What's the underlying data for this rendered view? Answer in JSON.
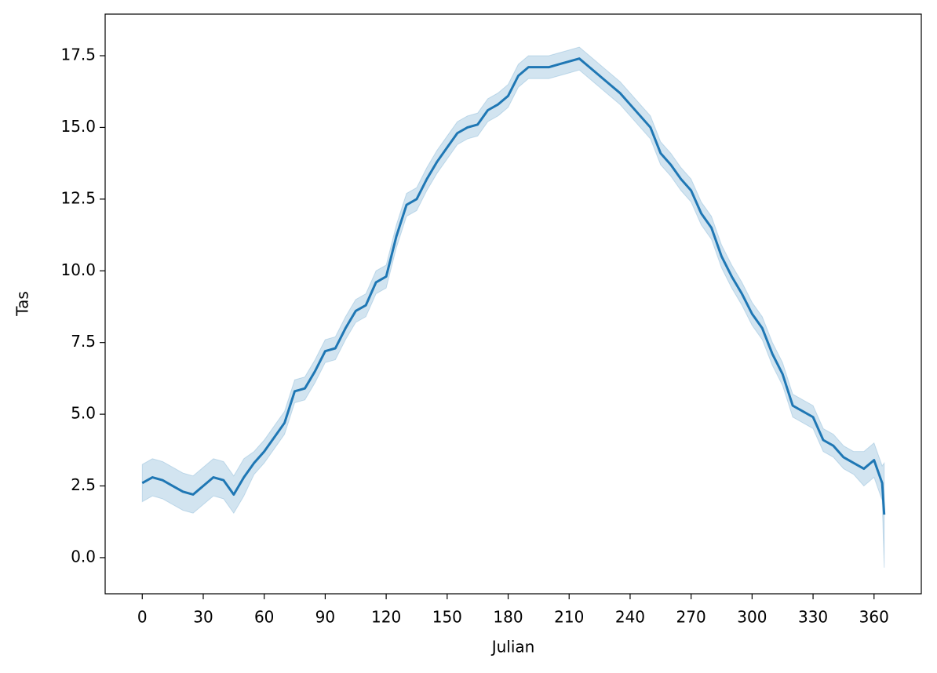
{
  "chart_data": {
    "type": "line",
    "xlabel": "Julian",
    "ylabel": "Tas",
    "x": [
      0,
      5,
      10,
      15,
      20,
      25,
      30,
      35,
      40,
      45,
      50,
      55,
      60,
      65,
      70,
      75,
      80,
      85,
      90,
      95,
      100,
      105,
      110,
      115,
      120,
      125,
      130,
      135,
      140,
      145,
      150,
      155,
      160,
      165,
      170,
      175,
      180,
      185,
      190,
      195,
      200,
      205,
      210,
      215,
      220,
      225,
      230,
      235,
      240,
      245,
      250,
      255,
      260,
      265,
      270,
      275,
      280,
      285,
      290,
      295,
      300,
      305,
      310,
      315,
      320,
      325,
      330,
      335,
      340,
      345,
      350,
      355,
      360,
      364,
      365
    ],
    "series": [
      {
        "color": "#1f77b4",
        "values": [
          2.6,
          2.8,
          2.7,
          2.5,
          2.3,
          2.2,
          2.5,
          2.8,
          2.7,
          2.2,
          2.8,
          3.3,
          3.7,
          4.2,
          4.7,
          5.8,
          5.9,
          6.5,
          7.2,
          7.3,
          8.0,
          8.6,
          8.8,
          9.6,
          9.8,
          11.2,
          12.3,
          12.5,
          13.2,
          13.8,
          14.3,
          14.8,
          15.0,
          15.1,
          15.6,
          15.8,
          16.1,
          16.8,
          17.1,
          17.1,
          17.1,
          17.2,
          17.3,
          17.4,
          17.1,
          16.8,
          16.5,
          16.2,
          15.8,
          15.4,
          15.0,
          14.1,
          13.7,
          13.2,
          12.8,
          12.0,
          11.5,
          10.5,
          9.8,
          9.2,
          8.5,
          8.0,
          7.1,
          6.4,
          5.3,
          5.1,
          4.9,
          4.1,
          3.9,
          3.5,
          3.3,
          3.1,
          3.4,
          2.6,
          1.5
        ],
        "ci_lower": [
          1.95,
          2.15,
          2.05,
          1.85,
          1.65,
          1.55,
          1.85,
          2.15,
          2.05,
          1.55,
          2.15,
          2.9,
          3.3,
          3.8,
          4.3,
          5.4,
          5.5,
          6.1,
          6.8,
          6.9,
          7.6,
          8.2,
          8.4,
          9.2,
          9.4,
          10.8,
          11.9,
          12.1,
          12.8,
          13.4,
          13.9,
          14.4,
          14.6,
          14.7,
          15.2,
          15.4,
          15.7,
          16.4,
          16.7,
          16.7,
          16.7,
          16.8,
          16.9,
          17.0,
          16.7,
          16.4,
          16.1,
          15.8,
          15.4,
          15.0,
          14.6,
          13.7,
          13.3,
          12.8,
          12.4,
          11.6,
          11.1,
          10.1,
          9.4,
          8.8,
          8.1,
          7.6,
          6.7,
          6.0,
          4.9,
          4.7,
          4.5,
          3.7,
          3.5,
          3.1,
          2.9,
          2.5,
          2.8,
          2.0,
          -0.35
        ],
        "ci_upper": [
          3.25,
          3.45,
          3.35,
          3.15,
          2.95,
          2.85,
          3.15,
          3.45,
          3.35,
          2.85,
          3.45,
          3.7,
          4.1,
          4.6,
          5.1,
          6.2,
          6.3,
          6.9,
          7.6,
          7.7,
          8.4,
          9.0,
          9.2,
          10.0,
          10.2,
          11.6,
          12.7,
          12.9,
          13.6,
          14.2,
          14.7,
          15.2,
          15.4,
          15.5,
          16.0,
          16.2,
          16.5,
          17.2,
          17.5,
          17.5,
          17.5,
          17.6,
          17.7,
          17.8,
          17.5,
          17.2,
          16.9,
          16.6,
          16.2,
          15.8,
          15.4,
          14.5,
          14.1,
          13.6,
          13.2,
          12.4,
          11.9,
          10.9,
          10.2,
          9.6,
          8.9,
          8.4,
          7.5,
          6.8,
          5.7,
          5.5,
          5.3,
          4.5,
          4.3,
          3.9,
          3.7,
          3.7,
          4.0,
          3.2,
          3.3
        ]
      }
    ],
    "xlim": [
      -18.25,
      383.25
    ],
    "xticks": [
      0,
      30,
      60,
      90,
      120,
      150,
      180,
      210,
      240,
      270,
      300,
      330,
      360
    ],
    "ylim": [
      -1.26,
      18.95
    ],
    "yticks": [
      {
        "value": 0,
        "label": "0.0"
      },
      2.5,
      {
        "value": 5,
        "label": "5.0"
      },
      7.5,
      {
        "value": 10,
        "label": "10.0"
      },
      12.5,
      {
        "value": 15,
        "label": "15.0"
      },
      17.5
    ],
    "grid": false
  }
}
